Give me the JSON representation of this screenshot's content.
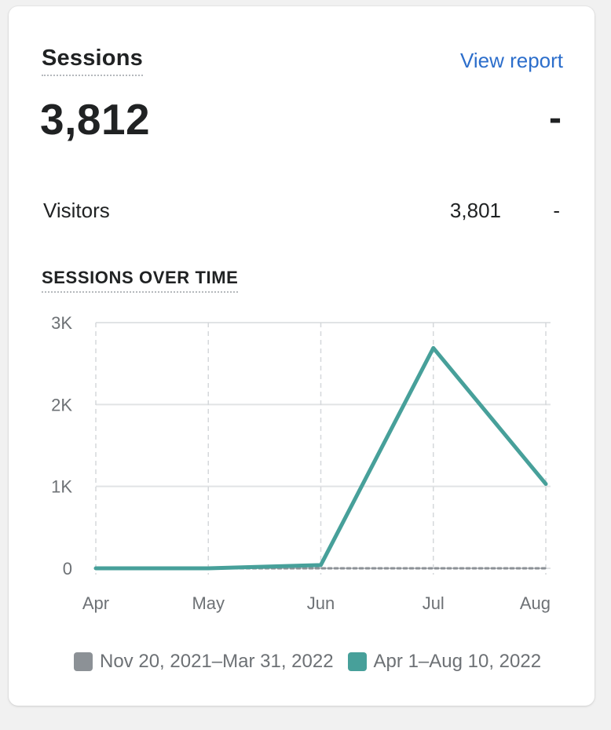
{
  "card": {
    "title": "Sessions",
    "link": "View report",
    "value": "3,812",
    "delta": "-",
    "visitors": {
      "label": "Visitors",
      "value": "3,801",
      "delta": "-"
    }
  },
  "chart_data": {
    "type": "line",
    "title": "SESSIONS OVER TIME",
    "categories": [
      "Apr",
      "May",
      "Jun",
      "Jul",
      "Aug"
    ],
    "y_ticks": [
      "0",
      "1K",
      "2K",
      "3K"
    ],
    "ylim": [
      0,
      3000
    ],
    "grid": true,
    "legend_position": "bottom",
    "series": [
      {
        "name": "Nov 20, 2021–Mar 31, 2022",
        "color": "#8c9196",
        "dashed": true,
        "values": [
          0,
          0,
          0,
          0,
          0
        ]
      },
      {
        "name": "Apr 1–Aug 10, 2022",
        "color": "#47a09a",
        "dashed": false,
        "values": [
          0,
          0,
          40,
          2690,
          1030
        ]
      }
    ]
  }
}
